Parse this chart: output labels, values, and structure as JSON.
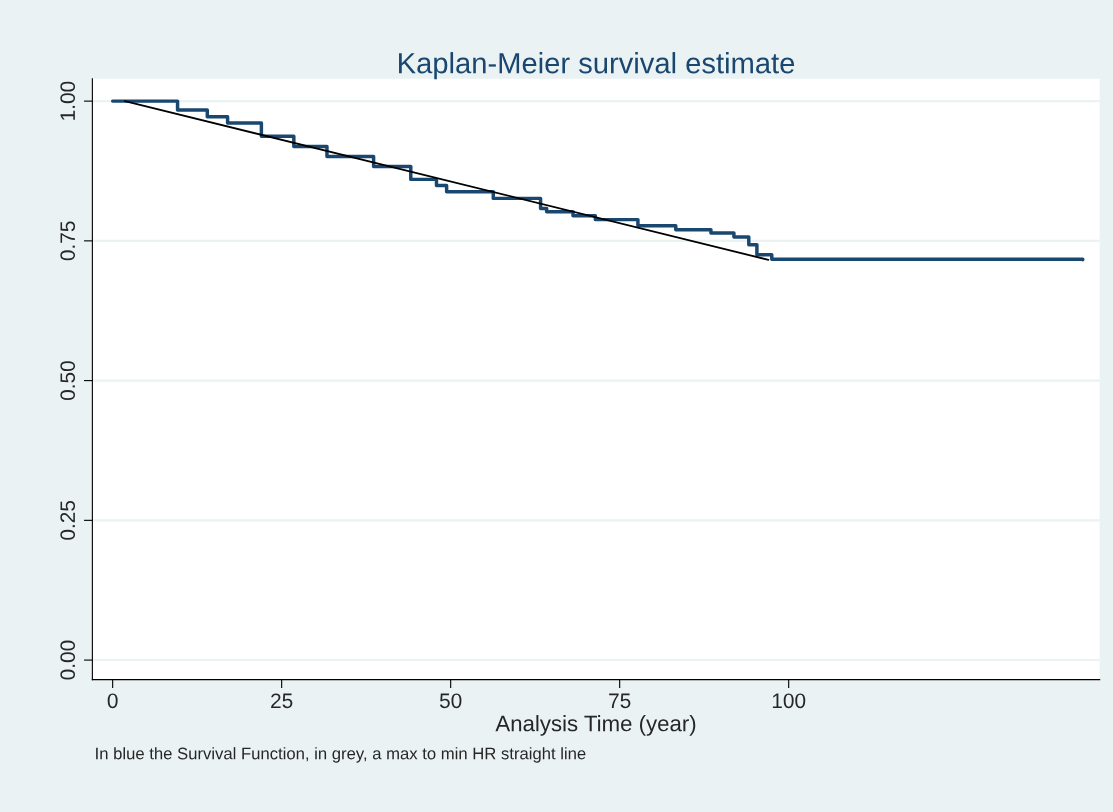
{
  "chart_data": {
    "type": "step",
    "title": "Kaplan-Meier survival estimate",
    "xlabel": "Analysis Time (year)",
    "annotations": [
      "In blue the Survival Function, in grey, a max to min HR straight line"
    ],
    "series": [
      {
        "color": "#1a476f",
        "x": [
          0,
          2.2,
          9.6,
          14,
          17,
          22,
          26.8,
          31.7,
          38.6,
          44.1,
          47.9,
          49.4,
          56.3,
          63.3,
          64.2,
          68.1,
          71.4,
          77.7,
          83.3,
          88.5,
          91.9,
          94.1,
          95.3,
          97.5,
          143.5
        ],
        "values": [
          1.0,
          1.0,
          0.984,
          0.972,
          0.961,
          0.937,
          0.919,
          0.901,
          0.883,
          0.86,
          0.849,
          0.838,
          0.826,
          0.808,
          0.802,
          0.795,
          0.788,
          0.777,
          0.77,
          0.764,
          0.757,
          0.743,
          0.725,
          0.717,
          0.716
        ]
      },
      {
        "type": "line",
        "color": "#000000",
        "x": [
          1.8,
          97
        ],
        "values": [
          1.0,
          0.716
        ]
      }
    ],
    "xlim": [
      -3,
      146
    ],
    "ylim": [
      -0.035,
      1.04
    ],
    "xticks": [
      0,
      25,
      50,
      75,
      100
    ],
    "yticks": [
      {
        "value": 0,
        "label": "0.00"
      },
      {
        "value": 0.25,
        "label": "0.25"
      },
      {
        "value": 0.5,
        "label": "0.50"
      },
      {
        "value": 0.75,
        "label": "0.75"
      },
      {
        "value": 1,
        "label": "1.00"
      }
    ],
    "grid": "y",
    "legend": false
  }
}
